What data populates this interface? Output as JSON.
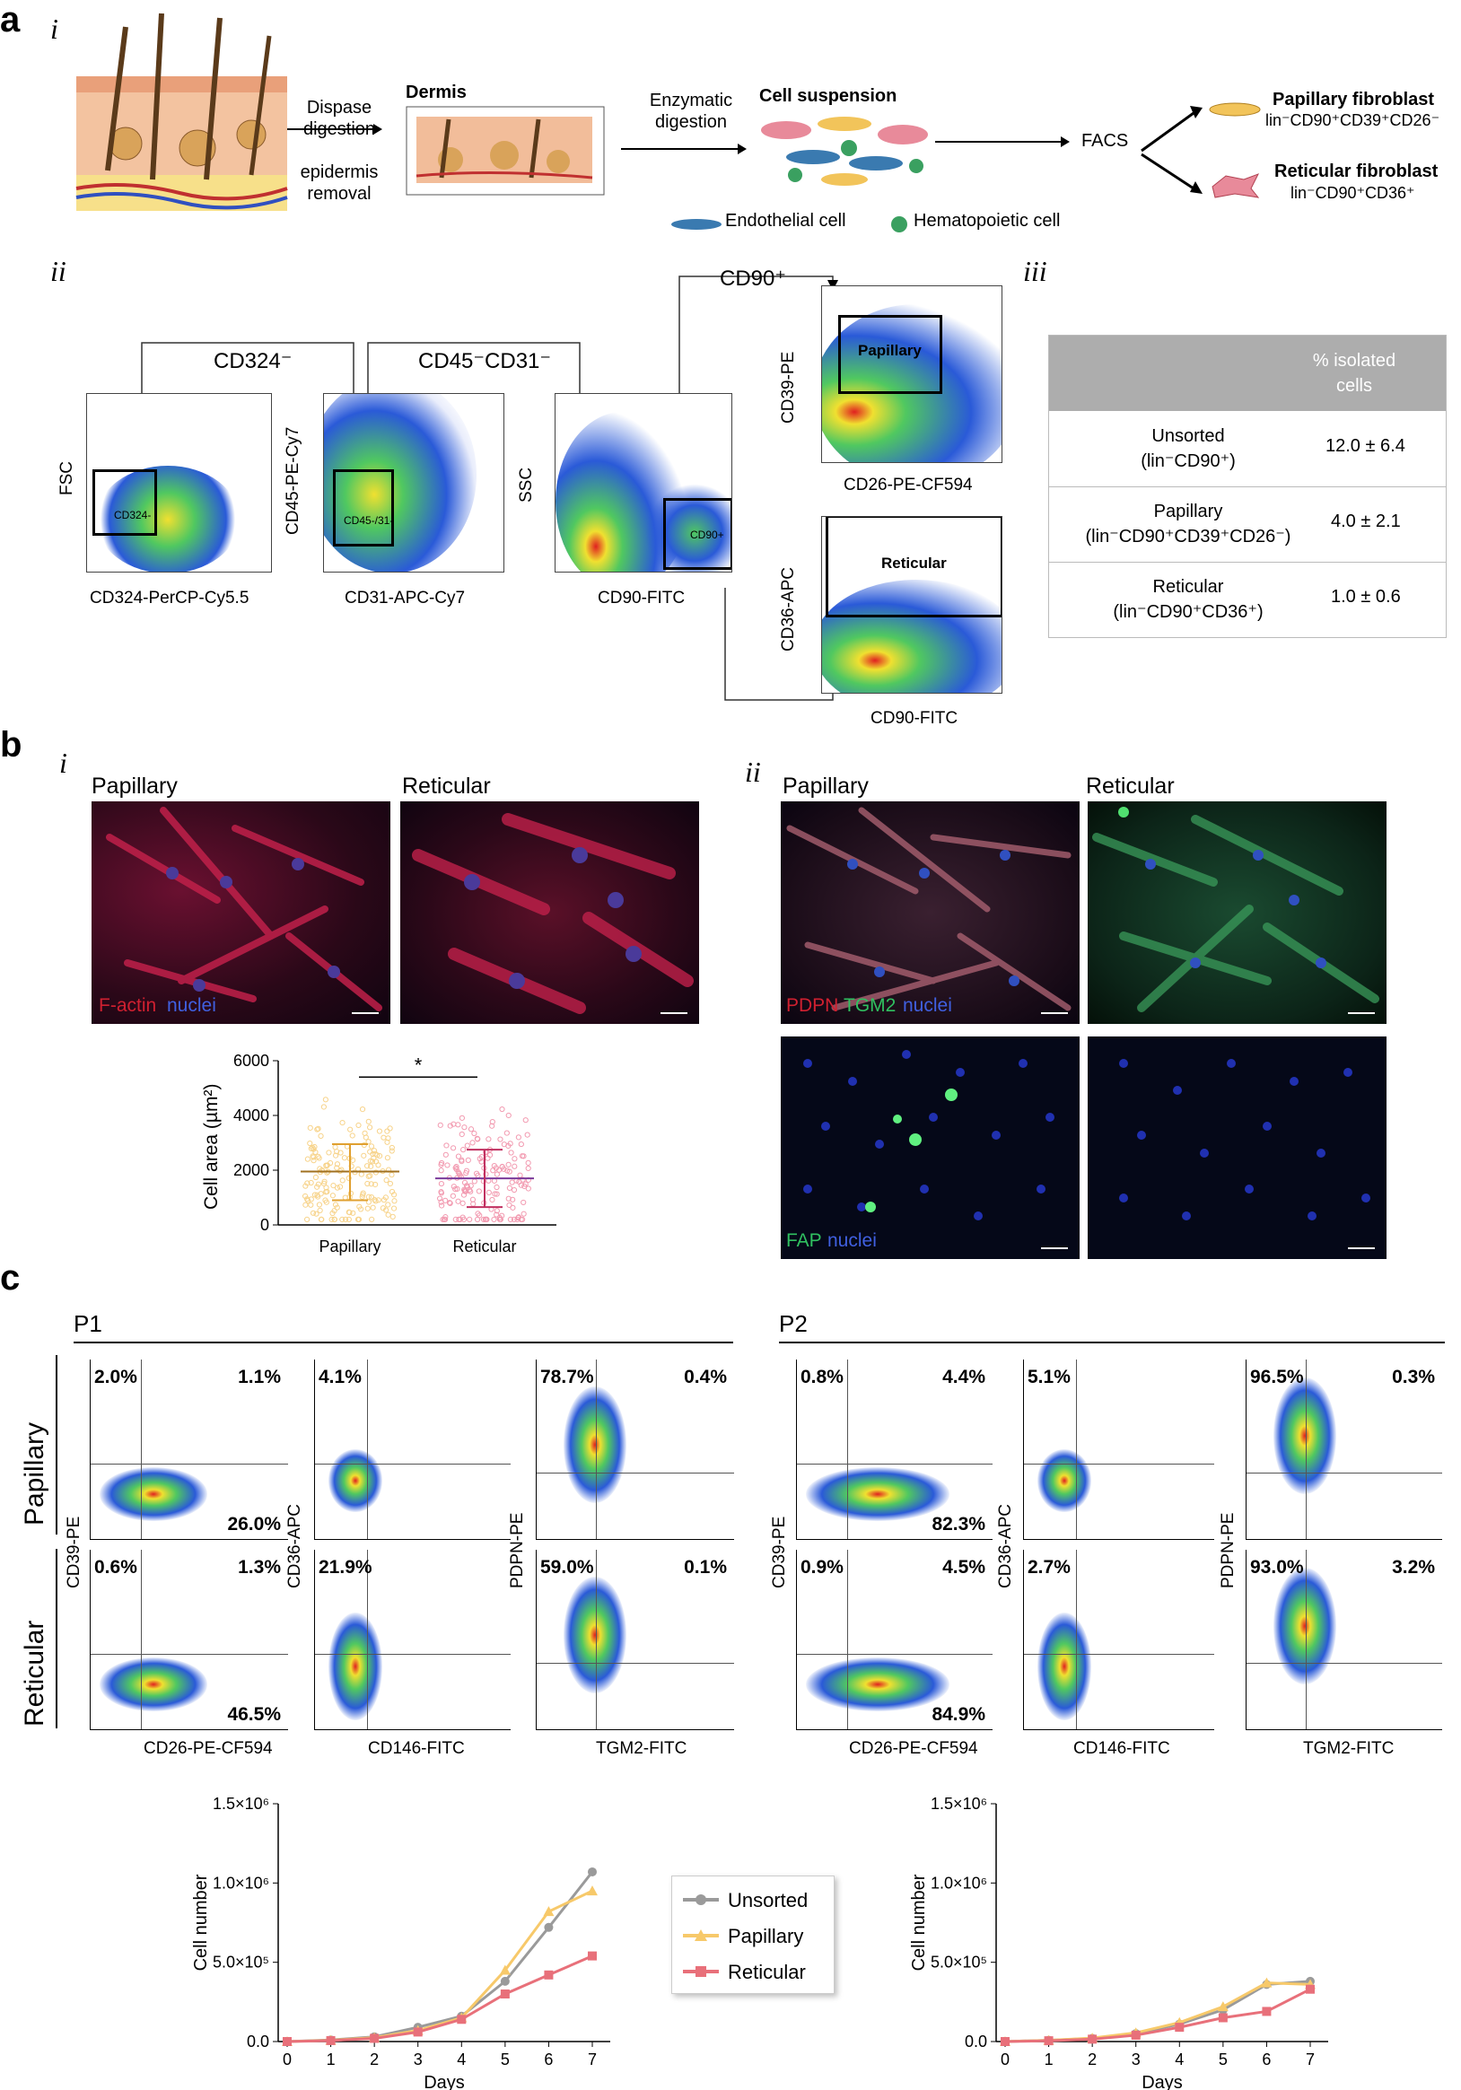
{
  "panel_a": {
    "label": "a",
    "sub_i": "i",
    "sub_ii": "ii",
    "sub_iii": "iii",
    "dispase_digestion": "Dispase\ndigestion",
    "epidermis_removal": "epidermis\nremoval",
    "dermis": "Dermis",
    "enzymatic_digestion": "Enzymatic\ndigestion",
    "cell_suspension": "Cell suspension",
    "facs": "FACS",
    "papillary_fibroblast": "Papillary fibroblast",
    "papillary_marker": "lin⁻CD90⁺CD39⁺CD26⁻",
    "reticular_fibroblast": "Reticular fibroblast",
    "reticular_marker": "lin⁻CD90⁺CD36⁺",
    "endothelial_cell": "Endothelial cell",
    "hematopoietic_cell": "Hematopoietic cell",
    "gating": {
      "cd324_arrow": "CD324⁻",
      "cd45_arrow": "CD45⁻CD31⁻",
      "cd90_arrow": "CD90⁺",
      "plot1_y": "FSC",
      "plot1_x": "CD324-PerCP-Cy5.5",
      "plot1_gate": "CD324-",
      "plot2_y": "CD45-PE-Cy7",
      "plot2_x": "CD31-APC-Cy7",
      "plot2_gate": "CD45-/31-",
      "plot3_y": "SSC",
      "plot3_x": "CD90-FITC",
      "plot3_gate": "CD90+",
      "plot4_y": "CD39-PE",
      "plot4_x": "CD26-PE-CF594",
      "plot4_gate": "Papillary",
      "plot5_y": "CD36-APC",
      "plot5_x": "CD90-FITC",
      "plot5_gate": "Reticular"
    },
    "table": {
      "header": "% isolated\ncells",
      "rows": [
        {
          "name": "Unsorted\n(lin⁻CD90⁺)",
          "value": "12.0 ± 6.4"
        },
        {
          "name": "Papillary\n(lin⁻CD90⁺CD39⁺CD26⁻)",
          "value": "4.0 ± 2.1"
        },
        {
          "name": "Reticular\n(lin⁻CD90⁺CD36⁺)",
          "value": "1.0 ± 0.6"
        }
      ]
    }
  },
  "panel_b": {
    "label": "b",
    "sub_i": "i",
    "sub_ii": "ii",
    "papillary": "Papillary",
    "reticular": "Reticular",
    "factin_label": "F-actin",
    "nuclei_label": "nuclei",
    "pdpn_label": "PDPN",
    "tgm2_label": "TGM2",
    "fap_label": "FAP",
    "chart_data": {
      "type": "scatter",
      "categories": [
        "Papillary",
        "Reticular"
      ],
      "ylabel": "Cell area (µm²)",
      "yticks": [
        "0",
        "2000",
        "4000",
        "6000"
      ],
      "ylim": [
        0,
        6000
      ],
      "means": [
        1950,
        1700
      ],
      "sd_low": [
        900,
        650
      ],
      "sd_high": [
        2950,
        2750
      ],
      "significance": "*"
    }
  },
  "panel_c": {
    "label": "c",
    "p1": "P1",
    "p2": "P2",
    "papillary_row": "Papillary",
    "reticular_row": "Reticular",
    "y_cd39": "CD39-PE",
    "y_cd36": "CD36-APC",
    "y_pdpn": "PDPN-PE",
    "x_cd26": "CD26-PE-CF594",
    "x_cd146": "CD146-FITC",
    "x_tgm2": "TGM2-FITC",
    "quadrants": {
      "p1_pap_cd39": {
        "ul": "2.0%",
        "ur": "1.1%",
        "lr": "26.0%"
      },
      "p1_pap_cd36": {
        "ul": "4.1%"
      },
      "p1_pap_pdpn": {
        "ul": "78.7%",
        "ur": "0.4%"
      },
      "p1_ret_cd39": {
        "ul": "0.6%",
        "ur": "1.3%",
        "lr": "46.5%"
      },
      "p1_ret_cd36": {
        "ul": "21.9%"
      },
      "p1_ret_pdpn": {
        "ul": "59.0%",
        "ur": "0.1%"
      },
      "p2_pap_cd39": {
        "ul": "0.8%",
        "ur": "4.4%",
        "lr": "82.3%"
      },
      "p2_pap_cd36": {
        "ul": "5.1%"
      },
      "p2_pap_pdpn": {
        "ul": "96.5%",
        "ur": "0.3%"
      },
      "p2_ret_cd39": {
        "ul": "0.9%",
        "ur": "4.5%",
        "lr": "84.9%"
      },
      "p2_ret_cd36": {
        "ul": "2.7%"
      },
      "p2_ret_pdpn": {
        "ul": "93.0%",
        "ur": "3.2%"
      }
    },
    "growth_charts": [
      {
        "type": "line",
        "x": [
          0,
          1,
          2,
          3,
          4,
          5,
          6,
          7
        ],
        "xlabel": "Days",
        "ylabel": "Cell number",
        "ylim": [
          0,
          1500000
        ],
        "yticks": [
          "0.0",
          "5.0×10⁵",
          "1.0×10⁶",
          "1.5×10⁶"
        ],
        "series": [
          {
            "name": "Unsorted",
            "values": [
              0,
              10000,
              30000,
              90000,
              160000,
              380000,
              720000,
              1070000
            ]
          },
          {
            "name": "Papillary",
            "values": [
              0,
              8000,
              25000,
              70000,
              150000,
              450000,
              820000,
              950000
            ]
          },
          {
            "name": "Reticular",
            "values": [
              0,
              6000,
              20000,
              60000,
              140000,
              300000,
              420000,
              540000
            ]
          }
        ]
      },
      {
        "type": "line",
        "x": [
          0,
          1,
          2,
          3,
          4,
          5,
          6,
          7
        ],
        "xlabel": "Days",
        "ylabel": "Cell number",
        "ylim": [
          0,
          1500000
        ],
        "yticks": [
          "0.0",
          "5.0×10⁵",
          "1.0×10⁶",
          "1.5×10⁶"
        ],
        "series": [
          {
            "name": "Unsorted",
            "values": [
              0,
              8000,
              20000,
              50000,
              110000,
              200000,
              360000,
              380000
            ]
          },
          {
            "name": "Papillary",
            "values": [
              0,
              8000,
              22000,
              55000,
              120000,
              220000,
              370000,
              360000
            ]
          },
          {
            "name": "Reticular",
            "values": [
              0,
              5000,
              15000,
              40000,
              90000,
              150000,
              190000,
              330000
            ]
          }
        ]
      }
    ],
    "legend": [
      "Unsorted",
      "Papillary",
      "Reticular"
    ],
    "colors": {
      "Unsorted": "#9a9a9a",
      "Papillary": "#f7c96a",
      "Reticular": "#e8707a"
    }
  }
}
